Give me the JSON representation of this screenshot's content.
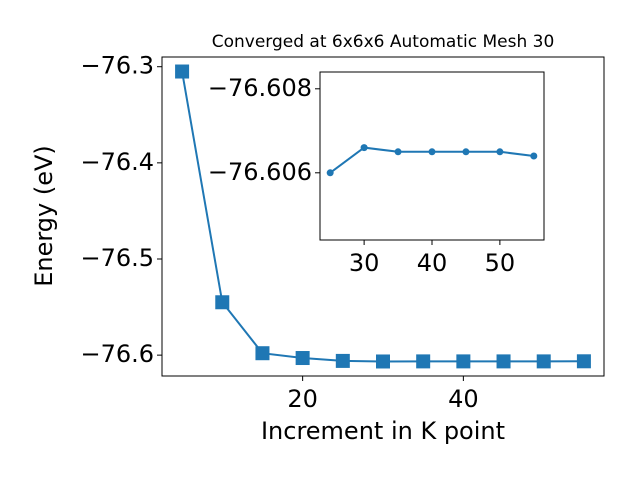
{
  "chart_data": [
    {
      "type": "line",
      "title": "Converged at 6x6x6 Automatic Mesh 30",
      "x_label": "Increment in K point",
      "y_label": "Energy (eV)",
      "x": [
        5,
        10,
        15,
        20,
        25,
        30,
        35,
        40,
        45,
        50,
        55
      ],
      "series": [
        {
          "color": "#1f77b4",
          "marker": "square",
          "values": [
            -76.305,
            -76.545,
            -76.598,
            -76.603,
            -76.606,
            -76.6066,
            -76.6065,
            -76.6065,
            -76.6065,
            -76.6065,
            -76.6064
          ]
        }
      ],
      "xlim": [
        2.5,
        57.5
      ],
      "xticks": [
        20,
        40
      ],
      "ylim": [
        -76.6217,
        -76.2899
      ],
      "yticks": [
        {
          "value": -76.6,
          "label": "−76.6"
        },
        {
          "value": -76.5,
          "label": "−76.5"
        },
        {
          "value": -76.4,
          "label": "−76.4"
        },
        {
          "value": -76.3,
          "label": "−76.3"
        }
      ]
    },
    {
      "type": "line",
      "x": [
        25,
        30,
        35,
        40,
        45,
        50,
        55
      ],
      "series": [
        {
          "color": "#1f77b4",
          "marker": "circle",
          "values": [
            -76.606,
            -76.6066,
            -76.6065,
            -76.6065,
            -76.6065,
            -76.6065,
            -76.6064
          ]
        }
      ],
      "xlim": [
        23.5,
        56.5
      ],
      "xticks": [
        30,
        40,
        50
      ],
      "ylim": [
        -76.6044,
        -76.6084
      ],
      "yticks": [
        {
          "value": -76.606,
          "label": "−76.606"
        },
        {
          "value": -76.608,
          "label": "−76.608"
        }
      ]
    }
  ]
}
